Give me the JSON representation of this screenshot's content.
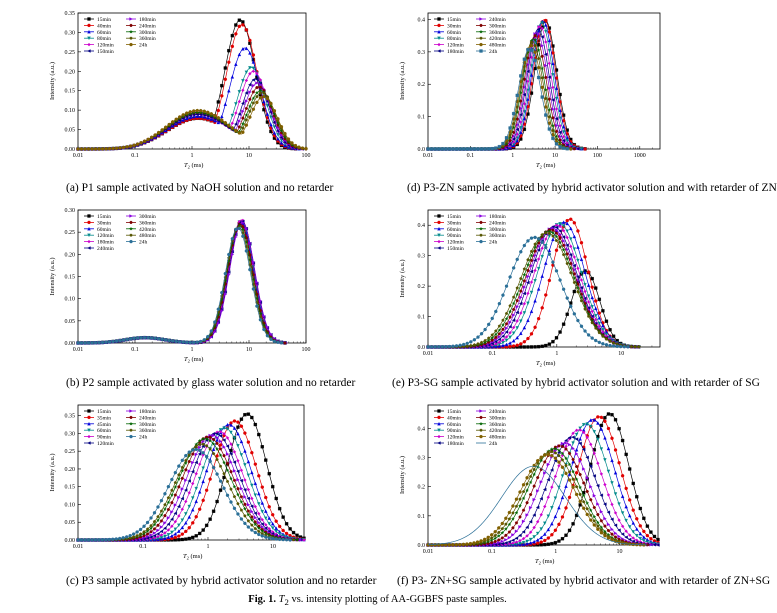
{
  "figure_caption": {
    "label": "Fig. 1.",
    "symbol": "T",
    "subscript": "2",
    "rest": " vs. intensity plotting of AA-GGBFS paste samples."
  },
  "captions": [
    "(a) P1 sample activated by NaOH solution and no retarder",
    "(d) P3-ZN sample activated by hybrid activator solution and with retarder of ZN",
    "(b) P2 sample activated by glass water solution and no retarder",
    "(e) P3-SG sample activated by hybrid activator solution and with retarder of SG",
    "(c) P3 sample activated by hybrid activator solution and no retarder",
    "(f) P3- ZN+SG sample activated by hybrid activator and with retarder of ZN+SG"
  ],
  "chart_data": [
    {
      "panel": "a",
      "type": "line",
      "xscale": "log",
      "xlabel": "T2 (ms)",
      "ylabel": "Intensity (a.u.)",
      "xlim": [
        0.01,
        100
      ],
      "ylim": [
        0,
        0.35
      ],
      "xticks": [
        "0.01",
        "0.1",
        "1",
        "10",
        "100"
      ],
      "yticks": [
        "0.00",
        "0.05",
        "0.10",
        "0.15",
        "0.20",
        "0.25",
        "0.30",
        "0.35"
      ],
      "legend_cols": 2,
      "series": [
        {
          "name": "15min",
          "color": "#000000",
          "marker": "square",
          "peak": 7.0,
          "height": 0.332,
          "width": 0.27,
          "low": 0.08
        },
        {
          "name": "40min",
          "color": "#e00000",
          "marker": "circle",
          "peak": 7.5,
          "height": 0.32,
          "width": 0.27,
          "low": 0.08
        },
        {
          "name": "60min",
          "color": "#0000dd",
          "marker": "triangle",
          "peak": 8.5,
          "height": 0.26,
          "width": 0.27,
          "low": 0.085
        },
        {
          "name": "80min",
          "color": "#008a8a",
          "marker": "tri-down",
          "peak": 11.0,
          "height": 0.21,
          "width": 0.25,
          "low": 0.09
        },
        {
          "name": "120min",
          "color": "#cc00cc",
          "marker": "diamond",
          "peak": 12.0,
          "height": 0.2,
          "width": 0.25,
          "low": 0.09
        },
        {
          "name": "150min",
          "color": "#000080",
          "marker": "tri-left",
          "peak": 13.0,
          "height": 0.18,
          "width": 0.24,
          "low": 0.09
        },
        {
          "name": "180min",
          "color": "#8a00e0",
          "marker": "tri-right",
          "peak": 14.0,
          "height": 0.17,
          "width": 0.24,
          "low": 0.095
        },
        {
          "name": "240min",
          "color": "#800000",
          "marker": "hexagon",
          "peak": 15.0,
          "height": 0.16,
          "width": 0.24,
          "low": 0.095
        },
        {
          "name": "300min",
          "color": "#006400",
          "marker": "star",
          "peak": 16.0,
          "height": 0.15,
          "width": 0.24,
          "low": 0.095
        },
        {
          "name": "360min",
          "color": "#555500",
          "marker": "pentagon",
          "peak": 17.0,
          "height": 0.145,
          "width": 0.24,
          "low": 0.1
        },
        {
          "name": "24h",
          "color": "#806000",
          "marker": "circle",
          "peak": 18.0,
          "height": 0.135,
          "width": 0.24,
          "low": 0.1
        }
      ]
    },
    {
      "panel": "d",
      "type": "line",
      "xscale": "log",
      "xlabel": "T2 (ms)",
      "ylabel": "Intensity (a.u.)",
      "xlim": [
        0.01,
        3000
      ],
      "ylim": [
        0,
        0.42
      ],
      "xticks": [
        "0.01",
        "0.1",
        "1",
        "10",
        "100",
        "1000"
      ],
      "yticks": [
        "0.0",
        "0.1",
        "0.2",
        "0.3",
        "0.4"
      ],
      "legend_cols": 2,
      "series": [
        {
          "name": "15min",
          "color": "#000000",
          "marker": "square",
          "peak": 6.0,
          "height": 0.395,
          "width": 0.26
        },
        {
          "name": "30min",
          "color": "#e00000",
          "marker": "circle",
          "peak": 5.6,
          "height": 0.4,
          "width": 0.26
        },
        {
          "name": "60min",
          "color": "#0000dd",
          "marker": "triangle",
          "peak": 5.2,
          "height": 0.395,
          "width": 0.26
        },
        {
          "name": "80min",
          "color": "#008a8a",
          "marker": "tri-down",
          "peak": 4.8,
          "height": 0.39,
          "width": 0.26
        },
        {
          "name": "120min",
          "color": "#cc00cc",
          "marker": "diamond",
          "peak": 4.4,
          "height": 0.38,
          "width": 0.26
        },
        {
          "name": "180min",
          "color": "#000080",
          "marker": "tri-left",
          "peak": 4.0,
          "height": 0.37,
          "width": 0.26
        },
        {
          "name": "240min",
          "color": "#8a00e0",
          "marker": "tri-right",
          "peak": 3.7,
          "height": 0.36,
          "width": 0.26
        },
        {
          "name": "300min",
          "color": "#800000",
          "marker": "hexagon",
          "peak": 3.4,
          "height": 0.35,
          "width": 0.26
        },
        {
          "name": "360min",
          "color": "#006400",
          "marker": "star",
          "peak": 3.1,
          "height": 0.34,
          "width": 0.26
        },
        {
          "name": "420min",
          "color": "#555500",
          "marker": "pentagon",
          "peak": 2.9,
          "height": 0.33,
          "width": 0.26
        },
        {
          "name": "480min",
          "color": "#806000",
          "marker": "circle",
          "peak": 2.7,
          "height": 0.32,
          "width": 0.26
        },
        {
          "name": "24h",
          "color": "#2a6f97",
          "marker": "square",
          "peak": 2.5,
          "height": 0.31,
          "width": 0.26
        }
      ]
    },
    {
      "panel": "b",
      "type": "line",
      "xscale": "log",
      "xlabel": "T2 (ms)",
      "ylabel": "Intensity (a.u.)",
      "xlim": [
        0.01,
        100
      ],
      "ylim": [
        0,
        0.3
      ],
      "xticks": [
        "0.01",
        "0.1",
        "1",
        "10",
        "100"
      ],
      "yticks": [
        "0.00",
        "0.05",
        "0.10",
        "0.15",
        "0.20",
        "0.25",
        "0.30"
      ],
      "legend_cols": 2,
      "series": [
        {
          "name": "15min",
          "color": "#000000",
          "marker": "square",
          "peak": 7.0,
          "height": 0.27,
          "width": 0.22,
          "bump": 0.012
        },
        {
          "name": "30min",
          "color": "#e00000",
          "marker": "circle",
          "peak": 7.1,
          "height": 0.272,
          "width": 0.22,
          "bump": 0.012
        },
        {
          "name": "60min",
          "color": "#0000dd",
          "marker": "triangle",
          "peak": 7.2,
          "height": 0.274,
          "width": 0.22,
          "bump": 0.012
        },
        {
          "name": "120min",
          "color": "#008a8a",
          "marker": "tri-down",
          "peak": 7.3,
          "height": 0.276,
          "width": 0.22,
          "bump": 0.012
        },
        {
          "name": "180min",
          "color": "#cc00cc",
          "marker": "diamond",
          "peak": 7.4,
          "height": 0.278,
          "width": 0.22,
          "bump": 0.012
        },
        {
          "name": "240min",
          "color": "#000080",
          "marker": "tri-left",
          "peak": 7.5,
          "height": 0.275,
          "width": 0.22,
          "bump": 0.012
        },
        {
          "name": "300min",
          "color": "#8a00e0",
          "marker": "tri-right",
          "peak": 7.6,
          "height": 0.272,
          "width": 0.22,
          "bump": 0.012
        },
        {
          "name": "360min",
          "color": "#800000",
          "marker": "hexagon",
          "peak": 7.0,
          "height": 0.268,
          "width": 0.22,
          "bump": 0.012
        },
        {
          "name": "420min",
          "color": "#006400",
          "marker": "star",
          "peak": 6.8,
          "height": 0.265,
          "width": 0.22,
          "bump": 0.012
        },
        {
          "name": "480min",
          "color": "#555500",
          "marker": "pentagon",
          "peak": 6.6,
          "height": 0.262,
          "width": 0.22,
          "bump": 0.012
        },
        {
          "name": "24h",
          "color": "#2a6f97",
          "marker": "circle",
          "peak": 6.4,
          "height": 0.26,
          "width": 0.22,
          "bump": 0.012
        }
      ]
    },
    {
      "panel": "e",
      "type": "line",
      "xscale": "log",
      "xlabel": "T2 (ms)",
      "ylabel": "Intensity (a.u.)",
      "xlim": [
        0.01,
        40
      ],
      "ylim": [
        0,
        0.45
      ],
      "xticks": [
        "0.01",
        "0.1",
        "1",
        "10"
      ],
      "yticks": [
        "0.0",
        "0.1",
        "0.2",
        "0.3",
        "0.4"
      ],
      "legend_cols": 2,
      "series": [
        {
          "name": "15min",
          "color": "#000000",
          "marker": "square",
          "peak": 2.8,
          "height": 0.25,
          "width": 0.22
        },
        {
          "name": "30min",
          "color": "#e00000",
          "marker": "circle",
          "peak": 1.6,
          "height": 0.42,
          "width": 0.28
        },
        {
          "name": "60min",
          "color": "#0000dd",
          "marker": "triangle",
          "peak": 1.3,
          "height": 0.41,
          "width": 0.32
        },
        {
          "name": "90min",
          "color": "#008a8a",
          "marker": "tri-down",
          "peak": 1.1,
          "height": 0.405,
          "width": 0.34
        },
        {
          "name": "120min",
          "color": "#cc00cc",
          "marker": "diamond",
          "peak": 1.0,
          "height": 0.4,
          "width": 0.35
        },
        {
          "name": "150min",
          "color": "#000080",
          "marker": "tri-left",
          "peak": 0.9,
          "height": 0.395,
          "width": 0.36
        },
        {
          "name": "180min",
          "color": "#8a00e0",
          "marker": "tri-right",
          "peak": 0.85,
          "height": 0.39,
          "width": 0.37
        },
        {
          "name": "240min",
          "color": "#800000",
          "marker": "hexagon",
          "peak": 0.8,
          "height": 0.385,
          "width": 0.38
        },
        {
          "name": "300min",
          "color": "#006400",
          "marker": "star",
          "peak": 0.75,
          "height": 0.38,
          "width": 0.39
        },
        {
          "name": "360min",
          "color": "#555500",
          "marker": "pentagon",
          "peak": 0.7,
          "height": 0.375,
          "width": 0.4
        },
        {
          "name": "24h",
          "color": "#2a6f97",
          "marker": "circle",
          "peak": 0.45,
          "height": 0.36,
          "width": 0.4
        }
      ]
    },
    {
      "panel": "c",
      "type": "line",
      "xscale": "log",
      "xlabel": "T2 (ms)",
      "ylabel": "Intensity (a.u.)",
      "xlim": [
        0.01,
        30
      ],
      "ylim": [
        0,
        0.38
      ],
      "xticks": [
        "0.01",
        "0.1",
        "1",
        "10"
      ],
      "yticks": [
        "0.00",
        "0.05",
        "0.10",
        "0.15",
        "0.20",
        "0.25",
        "0.30",
        "0.35"
      ],
      "legend_cols": 2,
      "series": [
        {
          "name": "15min",
          "color": "#000000",
          "marker": "square",
          "peak": 4.0,
          "height": 0.355,
          "width": 0.3
        },
        {
          "name": "35min",
          "color": "#e00000",
          "marker": "circle",
          "peak": 2.6,
          "height": 0.335,
          "width": 0.33
        },
        {
          "name": "45min",
          "color": "#0000dd",
          "marker": "triangle",
          "peak": 2.1,
          "height": 0.325,
          "width": 0.34
        },
        {
          "name": "60min",
          "color": "#008a8a",
          "marker": "tri-down",
          "peak": 1.8,
          "height": 0.315,
          "width": 0.35
        },
        {
          "name": "90min",
          "color": "#cc00cc",
          "marker": "diamond",
          "peak": 1.5,
          "height": 0.305,
          "width": 0.36
        },
        {
          "name": "120min",
          "color": "#000080",
          "marker": "tri-left",
          "peak": 1.3,
          "height": 0.3,
          "width": 0.37
        },
        {
          "name": "180min",
          "color": "#8a00e0",
          "marker": "tri-right",
          "peak": 1.15,
          "height": 0.295,
          "width": 0.38
        },
        {
          "name": "240min",
          "color": "#800000",
          "marker": "hexagon",
          "peak": 1.0,
          "height": 0.29,
          "width": 0.39
        },
        {
          "name": "300min",
          "color": "#006400",
          "marker": "star",
          "peak": 0.9,
          "height": 0.285,
          "width": 0.4
        },
        {
          "name": "360min",
          "color": "#555500",
          "marker": "pentagon",
          "peak": 0.8,
          "height": 0.27,
          "width": 0.4
        },
        {
          "name": "24h",
          "color": "#2a6f97",
          "marker": "circle",
          "peak": 0.65,
          "height": 0.255,
          "width": 0.41
        }
      ]
    },
    {
      "panel": "f",
      "type": "line",
      "xscale": "log",
      "xlabel": "T2 (ms)",
      "ylabel": "Intensity (a.u.)",
      "xlim": [
        0.01,
        40
      ],
      "ylim": [
        0,
        0.48
      ],
      "xticks": [
        "0.01",
        "0.1",
        "1",
        "10"
      ],
      "yticks": [
        "0.0",
        "0.1",
        "0.2",
        "0.3",
        "0.4"
      ],
      "legend_cols": 2,
      "series": [
        {
          "name": "15min",
          "color": "#000000",
          "marker": "square",
          "peak": 7.0,
          "height": 0.45,
          "width": 0.3
        },
        {
          "name": "40min",
          "color": "#e00000",
          "marker": "circle",
          "peak": 4.8,
          "height": 0.44,
          "width": 0.33
        },
        {
          "name": "60min",
          "color": "#0000dd",
          "marker": "triangle",
          "peak": 3.8,
          "height": 0.43,
          "width": 0.34
        },
        {
          "name": "90min",
          "color": "#008a8a",
          "marker": "tri-down",
          "peak": 3.0,
          "height": 0.415,
          "width": 0.35
        },
        {
          "name": "120min",
          "color": "#cc00cc",
          "marker": "diamond",
          "peak": 2.3,
          "height": 0.395,
          "width": 0.36
        },
        {
          "name": "180min",
          "color": "#000080",
          "marker": "tri-left",
          "peak": 1.8,
          "height": 0.37,
          "width": 0.37
        },
        {
          "name": "240min",
          "color": "#8a00e0",
          "marker": "tri-right",
          "peak": 1.4,
          "height": 0.35,
          "width": 0.38
        },
        {
          "name": "300min",
          "color": "#800000",
          "marker": "hexagon",
          "peak": 1.15,
          "height": 0.34,
          "width": 0.39
        },
        {
          "name": "360min",
          "color": "#006400",
          "marker": "star",
          "peak": 0.95,
          "height": 0.33,
          "width": 0.4
        },
        {
          "name": "420min",
          "color": "#555500",
          "marker": "pentagon",
          "peak": 0.85,
          "height": 0.32,
          "width": 0.41
        },
        {
          "name": "480min",
          "color": "#806000",
          "marker": "circle",
          "peak": 0.75,
          "height": 0.31,
          "width": 0.42
        },
        {
          "name": "24h",
          "color": "#2a6f97",
          "marker": "none",
          "peak": 0.45,
          "height": 0.27,
          "width": 0.5
        }
      ]
    }
  ]
}
